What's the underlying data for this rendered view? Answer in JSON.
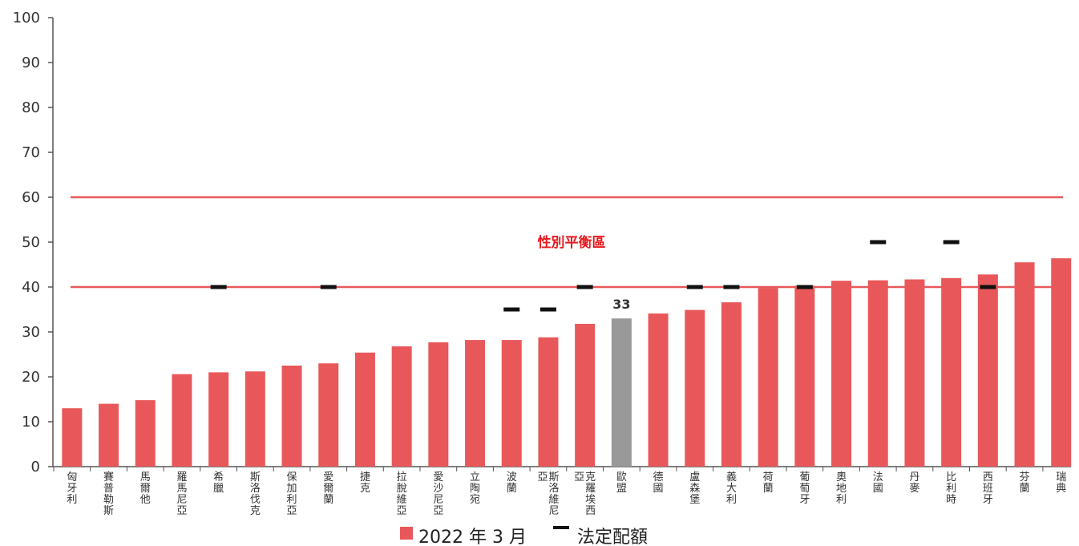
{
  "chart_data": {
    "type": "bar",
    "categories": [
      "匈牙利",
      "賽普勒斯",
      "馬爾他",
      "羅馬尼亞",
      "希臘",
      "斯洛伐克",
      "保加利亞",
      "愛爾蘭",
      "捷克",
      "拉脫維亞",
      "愛沙尼亞",
      "立陶宛",
      "波蘭",
      "斯洛維尼亞",
      "克羅埃西亞",
      "歐盟",
      "德國",
      "盧森堡",
      "義大利",
      "荷蘭",
      "葡萄牙",
      "奧地利",
      "法國",
      "丹麥",
      "比利時",
      "西班牙",
      "芬蘭",
      "瑞典"
    ],
    "category_label_columns": [
      [
        "匈牙利"
      ],
      [
        "賽普勒斯"
      ],
      [
        "馬爾他"
      ],
      [
        "羅馬尼亞"
      ],
      [
        "希臘"
      ],
      [
        "斯洛伐克"
      ],
      [
        "保加利亞"
      ],
      [
        "愛爾蘭"
      ],
      [
        "捷克"
      ],
      [
        "拉脫維亞"
      ],
      [
        "愛沙尼亞"
      ],
      [
        "立陶宛"
      ],
      [
        "波蘭"
      ],
      [
        "亞",
        "斯洛維尼"
      ],
      [
        "亞",
        "克羅埃西"
      ],
      [
        "歐盟"
      ],
      [
        "德國"
      ],
      [
        "盧森堡"
      ],
      [
        "義大利"
      ],
      [
        "荷蘭"
      ],
      [
        "葡萄牙"
      ],
      [
        "奧地利"
      ],
      [
        "法國"
      ],
      [
        "丹麥"
      ],
      [
        "比利時"
      ],
      [
        "西班牙"
      ],
      [
        "芬蘭"
      ],
      [
        "瑞典"
      ]
    ],
    "series": [
      {
        "name": "2022 年 3 月",
        "color": "#e8585a",
        "values": [
          13,
          14,
          14.8,
          20.6,
          21,
          21.2,
          22.5,
          23,
          25.4,
          26.8,
          27.7,
          28.2,
          28.2,
          28.8,
          31.8,
          33,
          34.1,
          34.9,
          36.6,
          39.8,
          40.3,
          41.4,
          41.5,
          41.7,
          42,
          42.8,
          45.5,
          46.4
        ]
      },
      {
        "name": "法定配額",
        "color": "#111111",
        "values": [
          null,
          null,
          null,
          null,
          40,
          null,
          null,
          40,
          null,
          null,
          null,
          null,
          35,
          35,
          40,
          null,
          null,
          40,
          40,
          null,
          40,
          null,
          50,
          null,
          50,
          40,
          null,
          null
        ]
      }
    ],
    "highlight_category": "歐盟",
    "highlight_color": "#999999",
    "data_labels": [
      {
        "category": "歐盟",
        "text": "33"
      }
    ],
    "reference_lines": [
      {
        "value": 60,
        "color": "#e8585a"
      },
      {
        "value": 40,
        "color": "#e8585a"
      }
    ],
    "zone_label": {
      "text": "性別平衡區",
      "color": "#e8191e",
      "y": 50
    },
    "yticks": [
      0,
      10,
      20,
      30,
      40,
      50,
      60,
      70,
      80,
      90,
      100
    ],
    "ylim": [
      0,
      100
    ],
    "grid": false,
    "title": "",
    "xlabel": "",
    "ylabel": ""
  },
  "legend": {
    "position": "bottom-center",
    "items": [
      {
        "label": "2022 年 3 月",
        "color": "#e8585a",
        "marker": "square"
      },
      {
        "label": "法定配額",
        "color": "#111111",
        "marker": "dash"
      }
    ]
  }
}
